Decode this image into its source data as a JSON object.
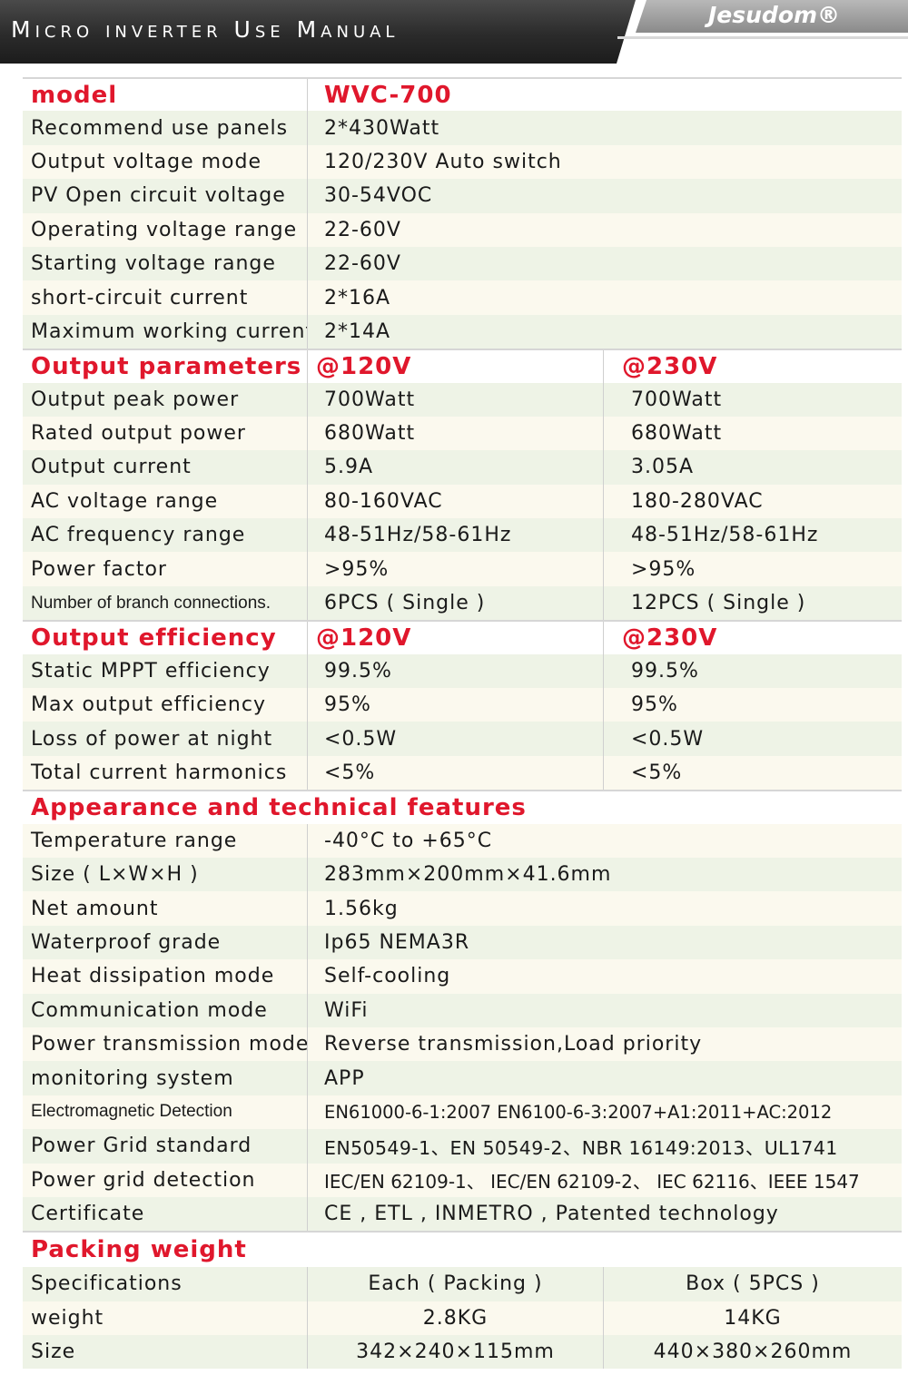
{
  "header": {
    "title": "Micro inverter Use Manual",
    "brand": "Jesudom®"
  },
  "model_section": {
    "label": "model",
    "value": "WVC-700",
    "rows": [
      {
        "label": "Recommend use panels",
        "value": "2*430Watt"
      },
      {
        "label": "Output voltage mode",
        "value": "120/230V Auto switch"
      },
      {
        "label": "PV Open circuit voltage",
        "value": "30-54VOC"
      },
      {
        "label": "Operating voltage range",
        "value": "22-60V"
      },
      {
        "label": "Starting voltage range",
        "value": "22-60V"
      },
      {
        "label": "short-circuit current",
        "value": "2*16A"
      },
      {
        "label": "Maximum working current",
        "value": "2*14A"
      }
    ]
  },
  "output_parameters": {
    "label": "Output parameters",
    "col1": "@120V",
    "col2": "@230V",
    "rows": [
      {
        "label": "Output peak power",
        "v120": "700Watt",
        "v230": "700Watt"
      },
      {
        "label": "Rated output power",
        "v120": "680Watt",
        "v230": "680Watt"
      },
      {
        "label": "Output current",
        "v120": "5.9A",
        "v230": "3.05A"
      },
      {
        "label": "AC voltage range",
        "v120": "80-160VAC",
        "v230": "180-280VAC"
      },
      {
        "label": "AC frequency range",
        "v120": "48-51Hz/58-61Hz",
        "v230": "48-51Hz/58-61Hz"
      },
      {
        "label": "Power factor",
        "v120": ">95%",
        "v230": ">95%"
      },
      {
        "label": "Number of branch connections.",
        "v120": "6PCS ( Single )",
        "v230": "12PCS ( Single )"
      }
    ]
  },
  "output_efficiency": {
    "label": "Output efficiency",
    "col1": "@120V",
    "col2": "@230V",
    "rows": [
      {
        "label": "Static MPPT efficiency",
        "v120": "99.5%",
        "v230": "99.5%"
      },
      {
        "label": "Max output efficiency",
        "v120": "95%",
        "v230": "95%"
      },
      {
        "label": "Loss of power at night",
        "v120": "<0.5W",
        "v230": "<0.5W"
      },
      {
        "label": "Total current harmonics",
        "v120": "<5%",
        "v230": "<5%"
      }
    ]
  },
  "appearance": {
    "label": "Appearance and technical features",
    "rows": [
      {
        "label": "Temperature range",
        "value": "-40°C to +65°C"
      },
      {
        "label": "Size ( L×W×H )",
        "value": "283mm×200mm×41.6mm"
      },
      {
        "label": "Net amount",
        "value": "1.56kg"
      },
      {
        "label": "Waterproof grade",
        "value": "Ip65 NEMA3R"
      },
      {
        "label": "Heat dissipation mode",
        "value": "Self-cooling"
      },
      {
        "label": "Communication mode",
        "value": "WiFi"
      },
      {
        "label": "Power transmission mode",
        "value": "Reverse transmission,Load priority"
      },
      {
        "label": "monitoring system",
        "value": "APP"
      },
      {
        "label": "Electromagnetic Detection",
        "value": "EN61000-6-1:2007 EN6100-6-3:2007+A1:2011+AC:2012"
      },
      {
        "label": "Power Grid standard",
        "value": "EN50549-1、EN 50549-2、NBR 16149:2013、UL1741"
      },
      {
        "label": "Power grid detection",
        "value": "IEC/EN 62109-1、 IEC/EN 62109-2、 IEC 62116、IEEE 1547"
      },
      {
        "label": "Certificate",
        "value": "CE , ETL , INMETRO , Patented technology"
      }
    ]
  },
  "packing": {
    "label": "Packing weight",
    "rows": [
      {
        "label": "Specifications",
        "each": "Each ( Packing )",
        "box": "Box ( 5PCS )"
      },
      {
        "label": "weight",
        "each": "2.8KG",
        "box": "14KG"
      },
      {
        "label": "Size",
        "each": "342×240×115mm",
        "box": "440×380×260mm"
      }
    ]
  }
}
